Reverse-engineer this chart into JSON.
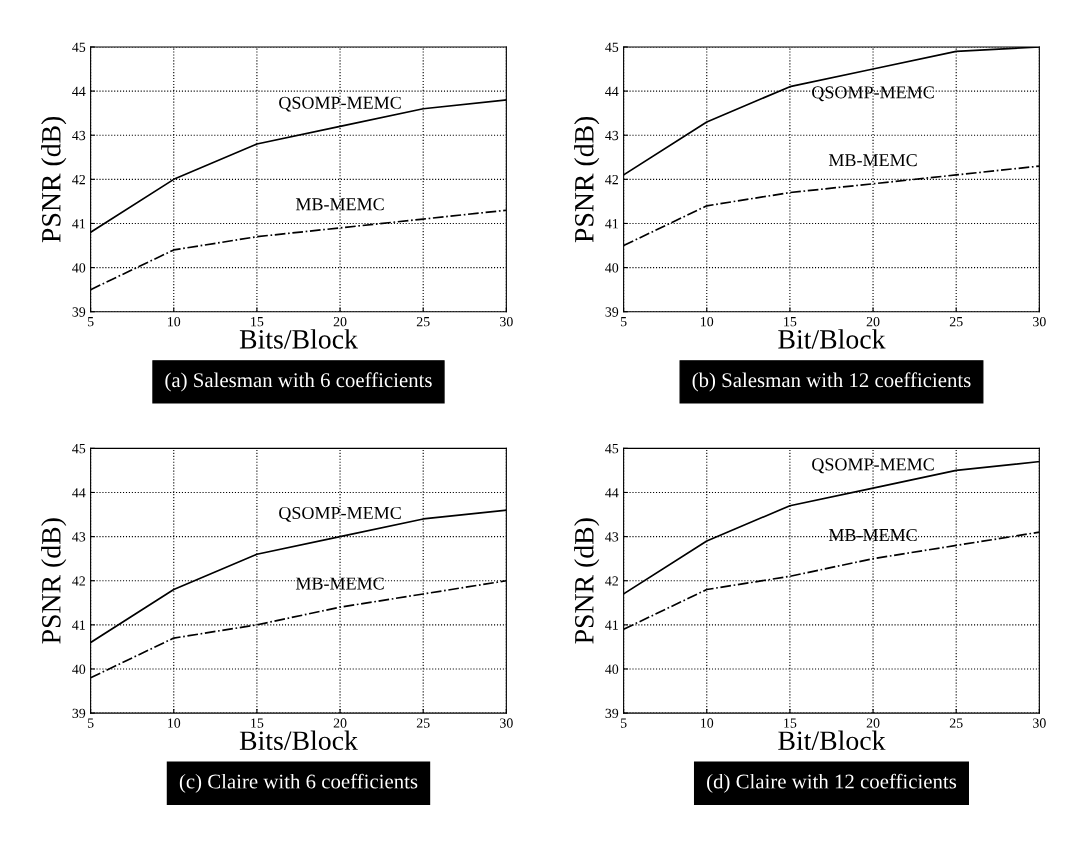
{
  "chart_data": [
    {
      "type": "line",
      "title": "(a) Salesman with 6 coefficients",
      "xlabel": "Bits/Block",
      "ylabel": "PSNR (dB)",
      "x": [
        5,
        10,
        15,
        20,
        25,
        30
      ],
      "xlim": [
        5,
        30
      ],
      "xticks": [
        5,
        10,
        15,
        20,
        25,
        30
      ],
      "ylim": [
        39,
        45
      ],
      "yticks": [
        39,
        40,
        41,
        42,
        43,
        44,
        45
      ],
      "grid": true,
      "series": [
        {
          "name": "QSOMP-MEMC",
          "color": "#000000",
          "line_style": "solid",
          "values": [
            40.8,
            42.0,
            42.8,
            43.2,
            43.6,
            43.8
          ]
        },
        {
          "name": "MB-MEMC",
          "color": "#000000",
          "line_style": "dashdot",
          "values": [
            39.5,
            40.4,
            40.7,
            40.9,
            41.1,
            41.3
          ]
        }
      ]
    },
    {
      "type": "line",
      "title": "(b) Salesman with 12 coefficients",
      "xlabel": "Bit/Block",
      "ylabel": "PSNR (dB)",
      "x": [
        5,
        10,
        15,
        20,
        25,
        30
      ],
      "xlim": [
        5,
        30
      ],
      "xticks": [
        5,
        10,
        15,
        20,
        25,
        30
      ],
      "ylim": [
        39,
        45
      ],
      "yticks": [
        39,
        40,
        41,
        42,
        43,
        44,
        45
      ],
      "grid": true,
      "series": [
        {
          "name": "QSOMP-MEMC",
          "color": "#000000",
          "line_style": "solid",
          "values": [
            42.1,
            43.3,
            44.1,
            44.5,
            44.9,
            45.0
          ]
        },
        {
          "name": "MB-MEMC",
          "color": "#000000",
          "line_style": "dashdot",
          "values": [
            40.5,
            41.4,
            41.7,
            41.9,
            42.1,
            42.3
          ]
        }
      ]
    },
    {
      "type": "line",
      "title": "(c) Claire with 6 coefficients",
      "xlabel": "Bits/Block",
      "ylabel": "PSNR (dB)",
      "x": [
        5,
        10,
        15,
        20,
        25,
        30
      ],
      "xlim": [
        5,
        30
      ],
      "xticks": [
        5,
        10,
        15,
        20,
        25,
        30
      ],
      "ylim": [
        39,
        45
      ],
      "yticks": [
        39,
        40,
        41,
        42,
        43,
        44,
        45
      ],
      "grid": true,
      "series": [
        {
          "name": "QSOMP-MEMC",
          "color": "#000000",
          "line_style": "solid",
          "values": [
            40.6,
            41.8,
            42.6,
            43.0,
            43.4,
            43.6
          ]
        },
        {
          "name": "MB-MEMC",
          "color": "#000000",
          "line_style": "dashdot",
          "values": [
            39.8,
            40.7,
            41.0,
            41.4,
            41.7,
            42.0
          ]
        }
      ]
    },
    {
      "type": "line",
      "title": "(d) Claire with 12 coefficients",
      "xlabel": "Bit/Block",
      "ylabel": "PSNR (dB)",
      "x": [
        5,
        10,
        15,
        20,
        25,
        30
      ],
      "xlim": [
        5,
        30
      ],
      "xticks": [
        5,
        10,
        15,
        20,
        25,
        30
      ],
      "ylim": [
        39,
        45
      ],
      "yticks": [
        39,
        40,
        41,
        42,
        43,
        44,
        45
      ],
      "grid": true,
      "series": [
        {
          "name": "QSOMP-MEMC",
          "color": "#000000",
          "line_style": "solid",
          "values": [
            41.7,
            42.9,
            43.7,
            44.1,
            44.5,
            44.7
          ]
        },
        {
          "name": "MB-MEMC",
          "color": "#000000",
          "line_style": "dashdot",
          "values": [
            40.9,
            41.8,
            42.1,
            42.5,
            42.8,
            43.1
          ]
        }
      ]
    }
  ]
}
